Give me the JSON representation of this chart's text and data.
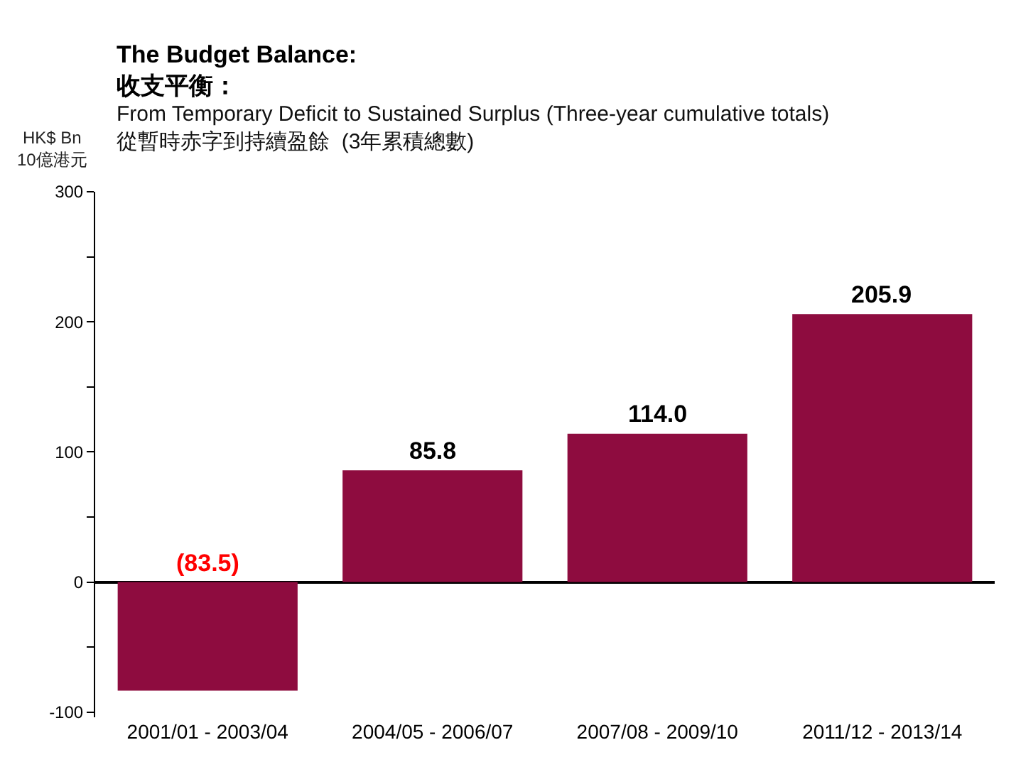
{
  "chart_data": {
    "type": "bar",
    "title": "The Budget Balance:\n收支平衡：",
    "subtitle": "From Temporary Deficit to Sustained Surplus (Three-year cumulative totals)\n從暫時赤字到持續盈餘  (3年累積總數)",
    "ylabel": "HK$ Bn\n10億港元",
    "categories": [
      "2001/01 - 2003/04",
      "2004/05 - 2006/07",
      "2007/08 - 2009/10",
      "2011/12 - 2013/14"
    ],
    "values": [
      -83.5,
      85.8,
      114.0,
      205.9
    ],
    "value_labels": [
      "(83.5)",
      "85.8",
      "114.0",
      "205.9"
    ],
    "color": "#8e0c3f",
    "ylim": [
      -104,
      300
    ],
    "yticks": [
      -100,
      {
        "value": -50,
        "label": null
      },
      0,
      {
        "value": 50,
        "label": null
      },
      100,
      {
        "value": 150,
        "label": null
      },
      200,
      {
        "value": 250,
        "label": null
      },
      300
    ]
  }
}
